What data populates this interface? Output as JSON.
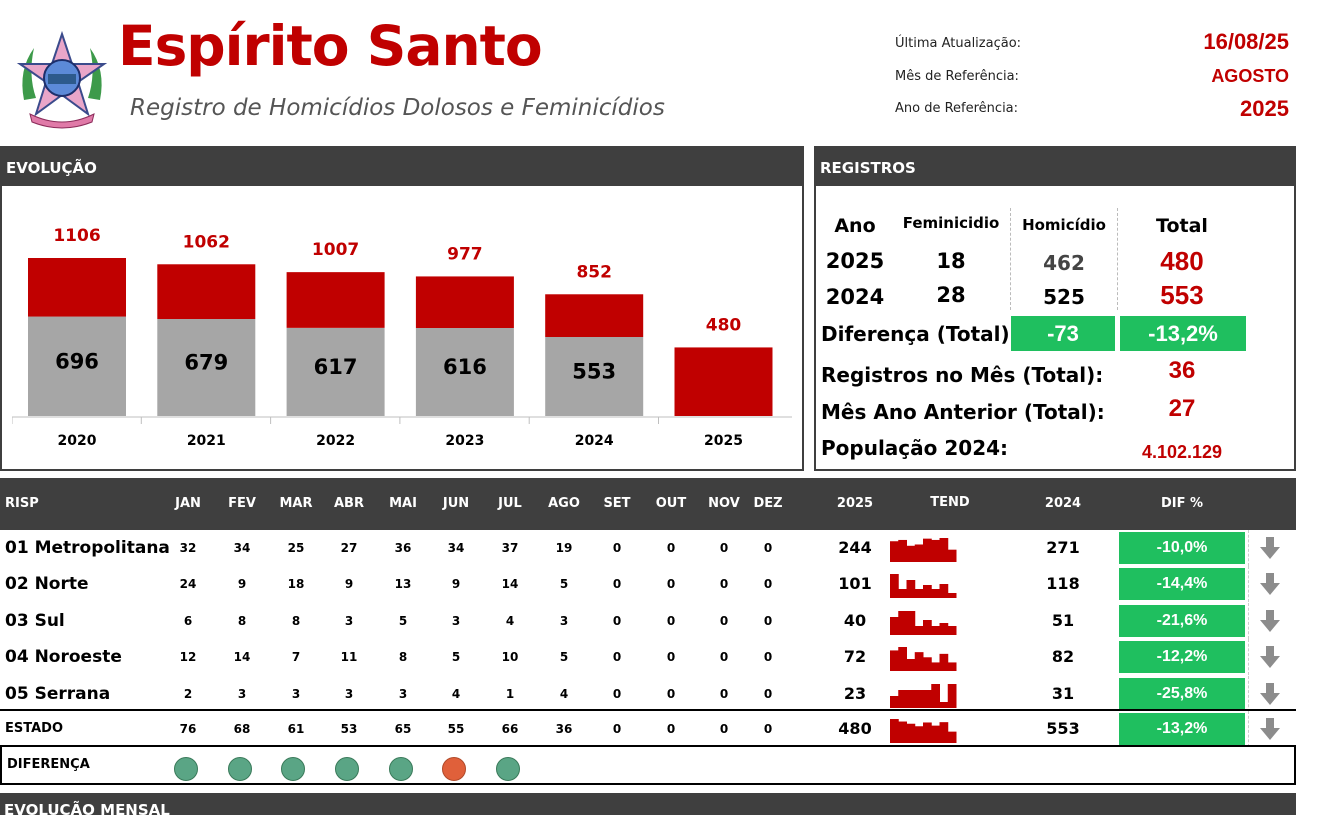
{
  "header": {
    "title": "Espírito Santo",
    "subtitle": "Registro de Homicídios Dolosos e Feminicídios",
    "last_update_label": "Última Atualização:",
    "last_update_value": "16/08/25",
    "ref_month_label": "Mês de Referência:",
    "ref_month_value": "AGOSTO",
    "ref_year_label": "Ano de Referência:",
    "ref_year_value": "2025"
  },
  "evolucao": {
    "title": "EVOLUÇÃO"
  },
  "chart_data": {
    "type": "bar",
    "categories": [
      "2020",
      "2021",
      "2022",
      "2023",
      "2024",
      "2025"
    ],
    "series": [
      {
        "values": [
          696,
          679,
          617,
          616,
          553,
          null
        ]
      },
      {
        "values": [
          410,
          383,
          390,
          361,
          299,
          480
        ]
      }
    ],
    "totals": [
      1106,
      1062,
      1007,
      977,
      852,
      480
    ],
    "colors": {
      "bottom": "#a6a6a6",
      "top": "#c00000"
    }
  },
  "registros": {
    "title": "REGISTROS",
    "col_ano": "Ano",
    "col_fem": "Feminicidio",
    "col_hom": "Homicídio",
    "col_total": "Total",
    "rows": [
      {
        "ano": "2025",
        "fem": "18",
        "hom": "462",
        "total": "480"
      },
      {
        "ano": "2024",
        "fem": "28",
        "hom": "525",
        "total": "553"
      }
    ],
    "diff_label": "Diferença (Total):",
    "diff_abs": "-73",
    "diff_pct": "-13,2%",
    "month_label": "Registros no Mês (Total):",
    "month_value": "36",
    "prev_label": "Mês Ano Anterior (Total):",
    "prev_value": "27",
    "pop_label": "População 2024:",
    "pop_value": "4.102.129"
  },
  "table": {
    "headers": [
      "RISP",
      "JAN",
      "FEV",
      "MAR",
      "ABR",
      "MAI",
      "JUN",
      "JUL",
      "AGO",
      "SET",
      "OUT",
      "NOV",
      "DEZ",
      "2025",
      "TEND",
      "2024",
      "DIF %"
    ],
    "rows": [
      {
        "name": "01 Metropolitana",
        "months": [
          "32",
          "34",
          "25",
          "27",
          "36",
          "34",
          "37",
          "19",
          "0",
          "0",
          "0",
          "0"
        ],
        "y2025": "244",
        "y2024": "271",
        "dif": "-10,0%"
      },
      {
        "name": "02 Norte",
        "months": [
          "24",
          "9",
          "18",
          "9",
          "13",
          "9",
          "14",
          "5",
          "0",
          "0",
          "0",
          "0"
        ],
        "y2025": "101",
        "y2024": "118",
        "dif": "-14,4%"
      },
      {
        "name": "03 Sul",
        "months": [
          "6",
          "8",
          "8",
          "3",
          "5",
          "3",
          "4",
          "3",
          "0",
          "0",
          "0",
          "0"
        ],
        "y2025": "40",
        "y2024": "51",
        "dif": "-21,6%"
      },
      {
        "name": "04 Noroeste",
        "months": [
          "12",
          "14",
          "7",
          "11",
          "8",
          "5",
          "10",
          "5",
          "0",
          "0",
          "0",
          "0"
        ],
        "y2025": "72",
        "y2024": "82",
        "dif": "-12,2%"
      },
      {
        "name": "05 Serrana",
        "months": [
          "2",
          "3",
          "3",
          "3",
          "3",
          "4",
          "1",
          "4",
          "0",
          "0",
          "0",
          "0"
        ],
        "y2025": "23",
        "y2024": "31",
        "dif": "-25,8%"
      }
    ],
    "estado": {
      "name": "ESTADO",
      "months": [
        "76",
        "68",
        "61",
        "53",
        "65",
        "55",
        "66",
        "36",
        "0",
        "0",
        "0",
        "0"
      ],
      "y2025": "480",
      "y2024": "553",
      "dif": "-13,2%"
    },
    "diferenca_label": "DIFERENÇA",
    "diferenca_status": [
      "down",
      "down",
      "down",
      "down",
      "down",
      "up",
      "down"
    ],
    "status_colors": {
      "down": "#5aa585",
      "up": "#e0603a"
    }
  },
  "bottom": {
    "title": "EVOLUÇÃO MENSAL"
  }
}
